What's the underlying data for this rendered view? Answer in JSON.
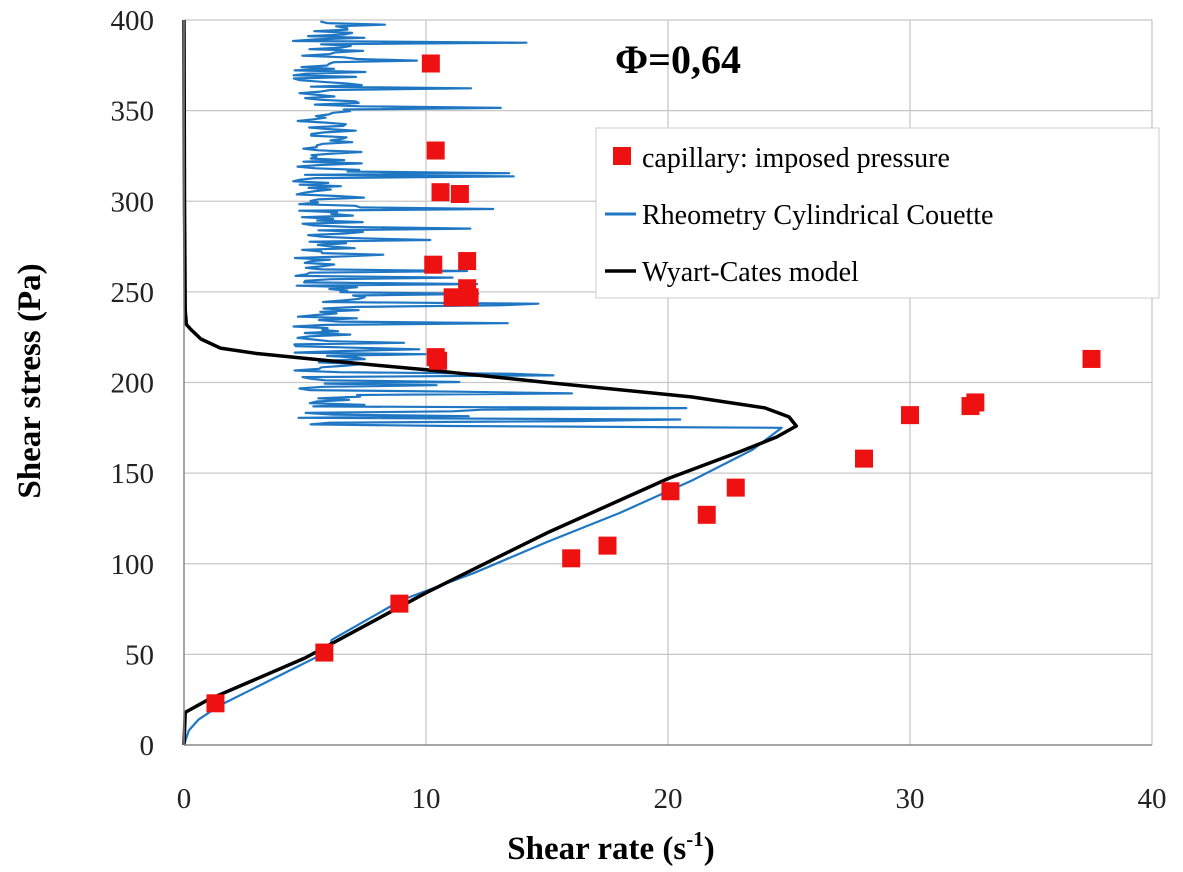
{
  "chart_data": {
    "type": "scatter",
    "annotation": "Φ=0,64",
    "xlabel": "Shear rate (s",
    "xlabel_sup": "-1",
    "xlabel_end": ")",
    "ylabel": "Shear stress (Pa)",
    "xlim": [
      0,
      40
    ],
    "ylim": [
      0,
      400
    ],
    "x_ticks": [
      "0",
      "10",
      "20",
      "30",
      "40"
    ],
    "y_ticks": [
      "0",
      "50",
      "100",
      "150",
      "200",
      "250",
      "300",
      "350",
      "400"
    ],
    "grid": true,
    "legend_position": "top-right",
    "series": [
      {
        "name": "capillary: imposed pressure",
        "kind": "marker",
        "color": "#ee1111",
        "points": [
          [
            1.3,
            23
          ],
          [
            5.8,
            51
          ],
          [
            8.9,
            78
          ],
          [
            16.0,
            103
          ],
          [
            17.5,
            110
          ],
          [
            20.1,
            140
          ],
          [
            21.6,
            127
          ],
          [
            22.8,
            142
          ],
          [
            28.1,
            158
          ],
          [
            30.0,
            182
          ],
          [
            32.5,
            187
          ],
          [
            32.7,
            189
          ],
          [
            37.5,
            213
          ],
          [
            10.4,
            214
          ],
          [
            10.5,
            212
          ],
          [
            11.1,
            247
          ],
          [
            11.8,
            247
          ],
          [
            11.7,
            252
          ],
          [
            11.7,
            267
          ],
          [
            10.3,
            265
          ],
          [
            10.6,
            305
          ],
          [
            11.4,
            304
          ],
          [
            10.4,
            328
          ],
          [
            10.2,
            376
          ]
        ]
      },
      {
        "name": "Rheometry Cylindrical Couette",
        "kind": "line",
        "color": "#1f77c4",
        "points": [
          [
            0,
            0
          ],
          [
            0.2,
            8
          ],
          [
            0.6,
            14
          ],
          [
            1.5,
            22
          ],
          [
            3.0,
            32
          ],
          [
            4.5,
            42
          ],
          [
            6.0,
            52
          ],
          [
            6.1,
            58
          ],
          [
            9.0,
            80
          ],
          [
            12.0,
            95
          ],
          [
            15.0,
            112
          ],
          [
            18.0,
            128
          ],
          [
            21.0,
            146
          ],
          [
            23.5,
            163
          ],
          [
            24.7,
            175
          ],
          [
            24.0,
            181
          ],
          [
            22.0,
            183
          ],
          [
            19.0,
            184
          ],
          [
            14.0,
            185
          ],
          [
            10.0,
            188
          ],
          [
            8.0,
            192
          ],
          [
            7.0,
            200
          ],
          [
            6.5,
            215
          ],
          [
            6.6,
            260
          ],
          [
            6.6,
            320
          ],
          [
            6.5,
            380
          ],
          [
            6.6,
            400
          ]
        ],
        "noise_band": {
          "y_from": 176,
          "y_to": 400,
          "x_left_range": [
            4.5,
            7.5
          ],
          "spike_max_x": [
            26.5,
            15.5,
            14.5,
            13.0
          ]
        }
      },
      {
        "name": "Wyart-Cates model",
        "kind": "line",
        "color": "#000000",
        "points": [
          [
            0,
            0
          ],
          [
            0.05,
            18
          ],
          [
            1.0,
            25
          ],
          [
            5.0,
            48
          ],
          [
            10.0,
            84
          ],
          [
            15.0,
            117
          ],
          [
            20.0,
            147
          ],
          [
            23.0,
            162
          ],
          [
            24.5,
            170
          ],
          [
            25.3,
            176
          ],
          [
            25.0,
            181
          ],
          [
            24.0,
            186
          ],
          [
            21.0,
            192
          ],
          [
            15.0,
            200
          ],
          [
            10.0,
            207
          ],
          [
            6.0,
            212
          ],
          [
            3.0,
            216
          ],
          [
            1.5,
            219
          ],
          [
            0.7,
            224
          ],
          [
            0.3,
            229
          ],
          [
            0.1,
            232
          ],
          [
            0.05,
            240
          ],
          [
            0.02,
            300
          ],
          [
            0.0,
            400
          ]
        ]
      }
    ]
  }
}
